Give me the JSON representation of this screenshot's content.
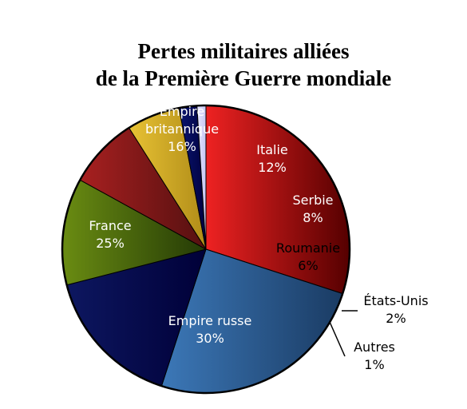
{
  "chart_data": {
    "type": "pie",
    "title": [
      "Pertes militaires alliées",
      "de la Première Guerre mondiale"
    ],
    "start_angle_deg": 90,
    "direction": "clockwise",
    "slices": [
      {
        "label": [
          "Empire russe"
        ],
        "value": 30,
        "value_label": "30%",
        "color_start": "#ee2222",
        "color_end": "#550000",
        "text_color": "#ffffff",
        "label_placement": "inside"
      },
      {
        "label": [
          "France"
        ],
        "value": 25,
        "value_label": "25%",
        "color_start": "#3c78b8",
        "color_end": "#1a3b63",
        "text_color": "#ffffff",
        "label_placement": "inside"
      },
      {
        "label": [
          "Empire",
          "britannique"
        ],
        "value": 16,
        "value_label": "16%",
        "color_start": "#0d1760",
        "color_end": "#000038",
        "text_color": "#ffffff",
        "label_placement": "inside"
      },
      {
        "label": [
          "Italie"
        ],
        "value": 12,
        "value_label": "12%",
        "color_start": "#6a8c12",
        "color_end": "#243a06",
        "text_color": "#ffffff",
        "label_placement": "inside"
      },
      {
        "label": [
          "Serbie"
        ],
        "value": 8,
        "value_label": "8%",
        "color_start": "#a82020",
        "color_end": "#551010",
        "text_color": "#ffffff",
        "label_placement": "inside"
      },
      {
        "label": [
          "Roumanie"
        ],
        "value": 6,
        "value_label": "6%",
        "color_start": "#e8c234",
        "color_end": "#b08c18",
        "text_color": "#000000",
        "label_placement": "inside"
      },
      {
        "label": [
          "États-Unis"
        ],
        "value": 2,
        "value_label": "2%",
        "color_start": "#0a1670",
        "color_end": "#000040",
        "text_color": "#000000",
        "label_placement": "outside"
      },
      {
        "label": [
          "Autres"
        ],
        "value": 1,
        "value_label": "1%",
        "color_start": "#e4e4ff",
        "color_end": "#c8c8f4",
        "text_color": "#000000",
        "label_placement": "outside"
      }
    ],
    "legend": "none"
  }
}
